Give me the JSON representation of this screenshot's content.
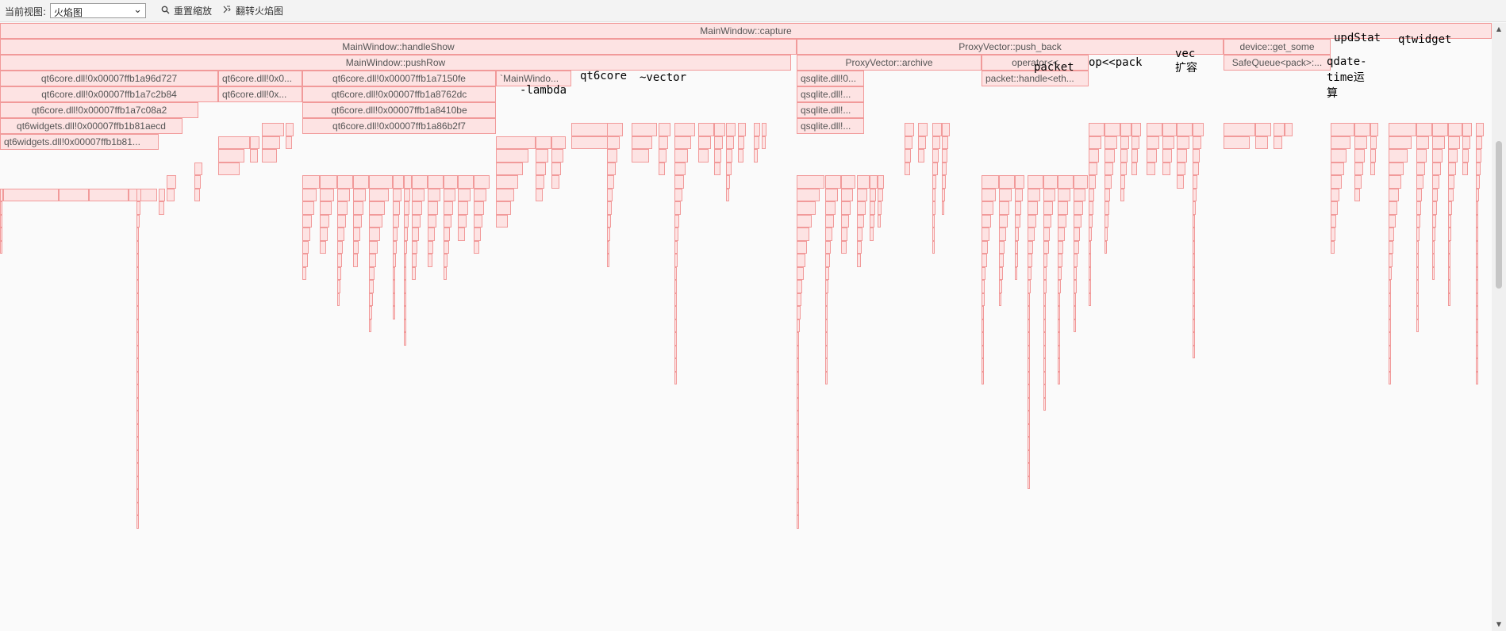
{
  "toolbar": {
    "view_label": "当前视图:",
    "view_selected": "火焰图",
    "reset_zoom": "重置缩放",
    "flip_flame": "翻转火焰图"
  },
  "frames": {
    "capture": "MainWindow::capture",
    "handleShow": "MainWindow::handleShow",
    "push_back": "ProxyVector::push_back",
    "get_some": "device::get_some",
    "pushRow": "MainWindow::pushRow",
    "archive": "ProxyVector::archive",
    "operators": "operator<<",
    "safequeue": "SafeQueue<pack>:...",
    "qt6core_a96d727": "qt6core.dll!0x00007ffb1a96d727",
    "qt6core_0x_1": "qt6core.dll!0x0...",
    "qt6core_a7150fe": "qt6core.dll!0x00007ffb1a7150fe",
    "mainwindo_lambda": "`MainWindo...",
    "qt6core_a7c2b84": "qt6core.dll!0x00007ffb1a7c2b84",
    "qt6core_0x_2": "qt6core.dll!0x...",
    "qt6core_a8762dc": "qt6core.dll!0x00007ffb1a8762dc",
    "qt6core_a7c08a2": "qt6core.dll!0x00007ffb1a7c08a2",
    "qt6core_a8410be": "qt6core.dll!0x00007ffb1a8410be",
    "qt6widgets_b81aecd": "qt6widgets.dll!0x00007ffb1b81aecd",
    "qt6core_a86b2f7": "qt6core.dll!0x00007ffb1a86b2f7",
    "qt6widgets_b81": "qt6widgets.dll!0x00007ffb1b81...",
    "qsqlite_1": "qsqlite.dll!0...",
    "qsqlite_2": "qsqlite.dll!...",
    "qsqlite_3": "qsqlite.dll!...",
    "qsqlite_4": "qsqlite.dll!...",
    "packet_handle": "packet::handle<eth..."
  },
  "overlays": {
    "qt6core": "qt6core",
    "vector": "~vector",
    "lambda": "-lambda",
    "packet": "packet",
    "oppack": "op<<pack",
    "vec": "vec",
    "kuorong": "扩容",
    "updstat": "updStat",
    "qtwidget": "qtwidget",
    "qdate": "qdate-",
    "timeyun": "time运",
    "suan": "算"
  }
}
